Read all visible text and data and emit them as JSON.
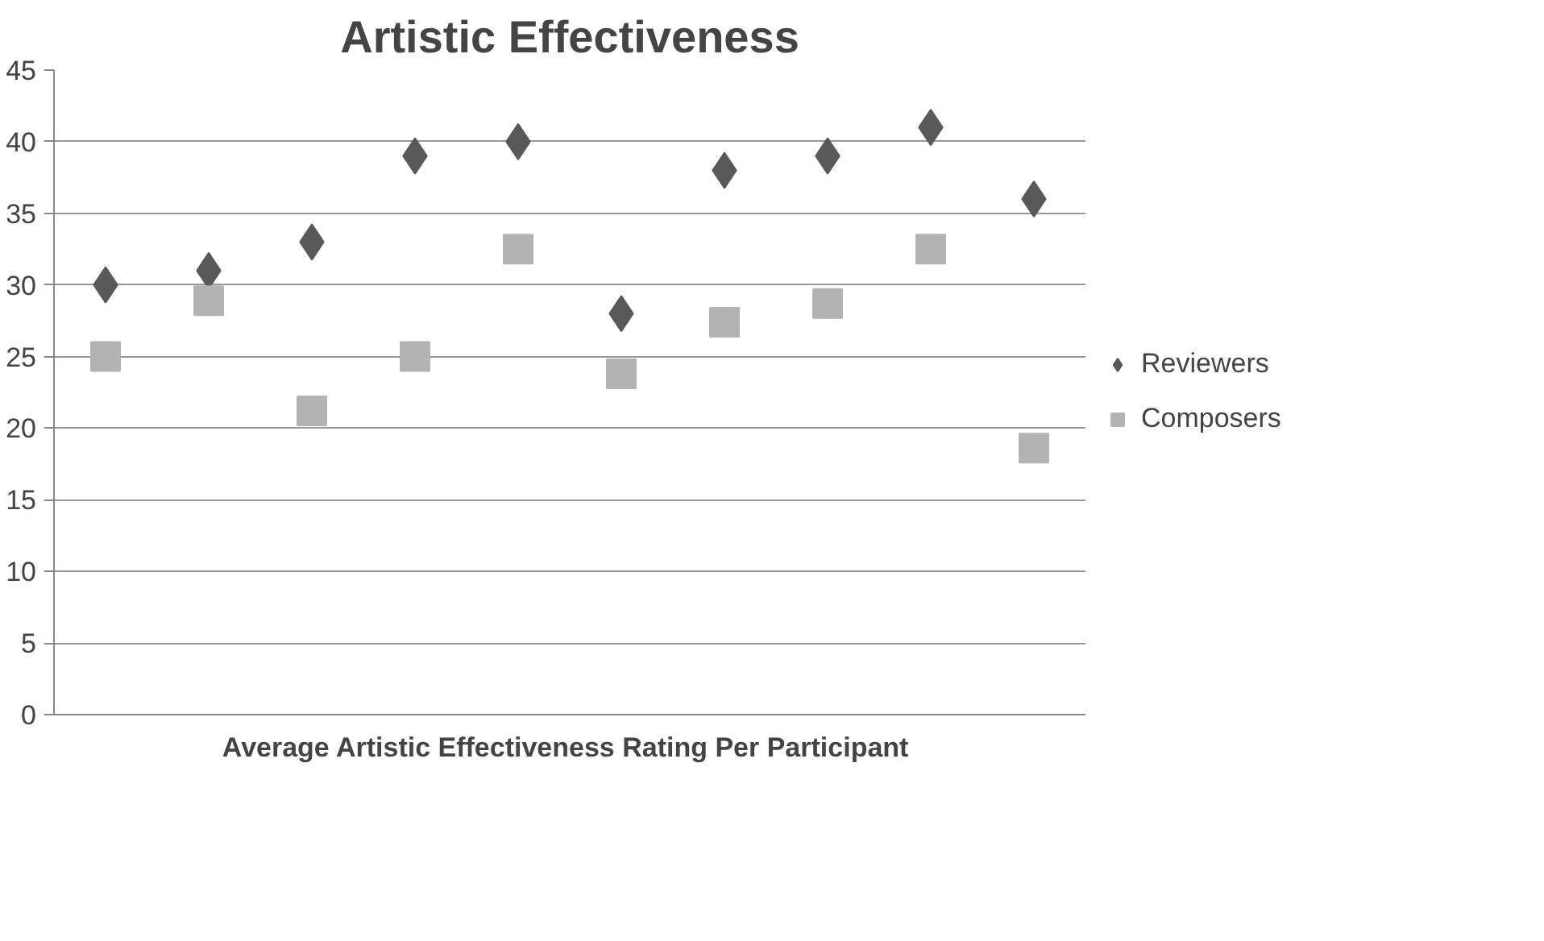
{
  "chart_data": {
    "type": "scatter",
    "title": "Artistic Effectiveness",
    "xlabel": "Average Artistic Effectiveness Rating  Per Participant",
    "categories": [
      null,
      null,
      null,
      null,
      null,
      null,
      null,
      null,
      null,
      null
    ],
    "series": [
      {
        "name": "Reviewers",
        "color": "#595959",
        "marker": "diamond",
        "values": [
          30,
          31,
          33,
          39,
          40,
          28,
          38,
          39,
          41,
          36
        ]
      },
      {
        "name": "Composers",
        "color": "#b3b3b3",
        "marker": "square",
        "values": [
          25,
          28.9,
          21.2,
          25,
          32.5,
          23.8,
          27.4,
          28.7,
          32.5,
          18.6
        ]
      }
    ],
    "ylim": [
      0,
      45
    ],
    "yticks": [
      0,
      5,
      10,
      15,
      20,
      25,
      30,
      35,
      40,
      45
    ],
    "grid": "y",
    "legend": "right"
  }
}
